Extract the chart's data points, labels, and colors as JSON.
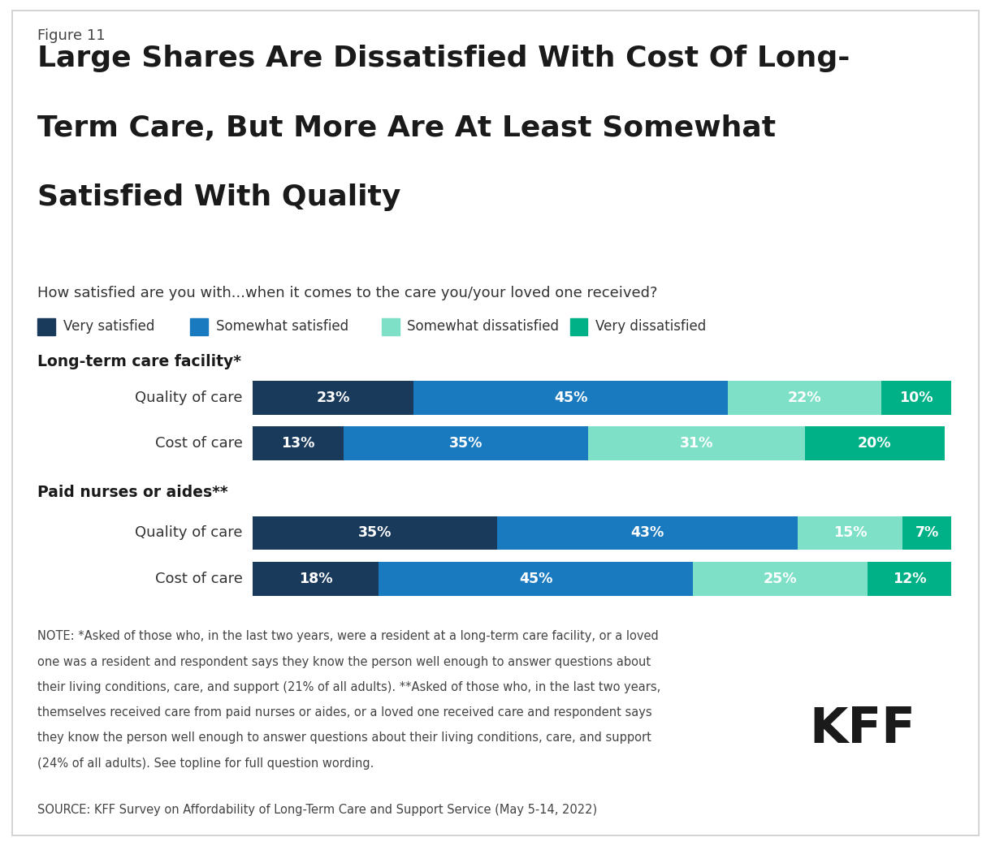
{
  "figure_label": "Figure 11",
  "title_line1": "Large Shares Are Dissatisfied With Cost Of Long-",
  "title_line2": "Term Care, But More Are At Least Somewhat",
  "title_line3": "Satisfied With Quality",
  "subtitle": "How satisfied are you with...when it comes to the care you/your loved one received?",
  "legend_labels": [
    "Very satisfied",
    "Somewhat satisfied",
    "Somewhat dissatisfied",
    "Very dissatisfied"
  ],
  "legend_colors": [
    "#1a3a5c",
    "#1a7abf",
    "#7fe0c8",
    "#00b087"
  ],
  "section1_label": "Long-term care facility*",
  "section2_label": "Paid nurses or aides**",
  "bar_row_labels": [
    "Quality of care",
    "Cost of care",
    "Quality of care",
    "Cost of care"
  ],
  "data": [
    [
      23,
      45,
      22,
      10
    ],
    [
      13,
      35,
      31,
      20
    ],
    [
      35,
      43,
      15,
      7
    ],
    [
      18,
      45,
      25,
      12
    ]
  ],
  "colors": [
    "#1a3a5c",
    "#1a7abf",
    "#7fe0c8",
    "#00b087"
  ],
  "background_color": "#ffffff",
  "border_color": "#cccccc",
  "note_line1": "NOTE: *Asked of those who, in the last two years, were a resident at a long-term care facility, or a loved",
  "note_line2": "one was a resident and respondent says they know the person well enough to answer questions about",
  "note_line3": "their living conditions, care, and support (21% of all adults). **Asked of those who, in the last two years,",
  "note_line4": "themselves received care from paid nurses or aides, or a loved one received care and respondent says",
  "note_line5": "they know the person well enough to answer questions about their living conditions, care, and support",
  "note_line6": "(24% of all adults). See topline for full question wording.",
  "source_text": "SOURCE: KFF Survey on Affordability of Long-Term Care and Support Service (May 5-14, 2022)"
}
